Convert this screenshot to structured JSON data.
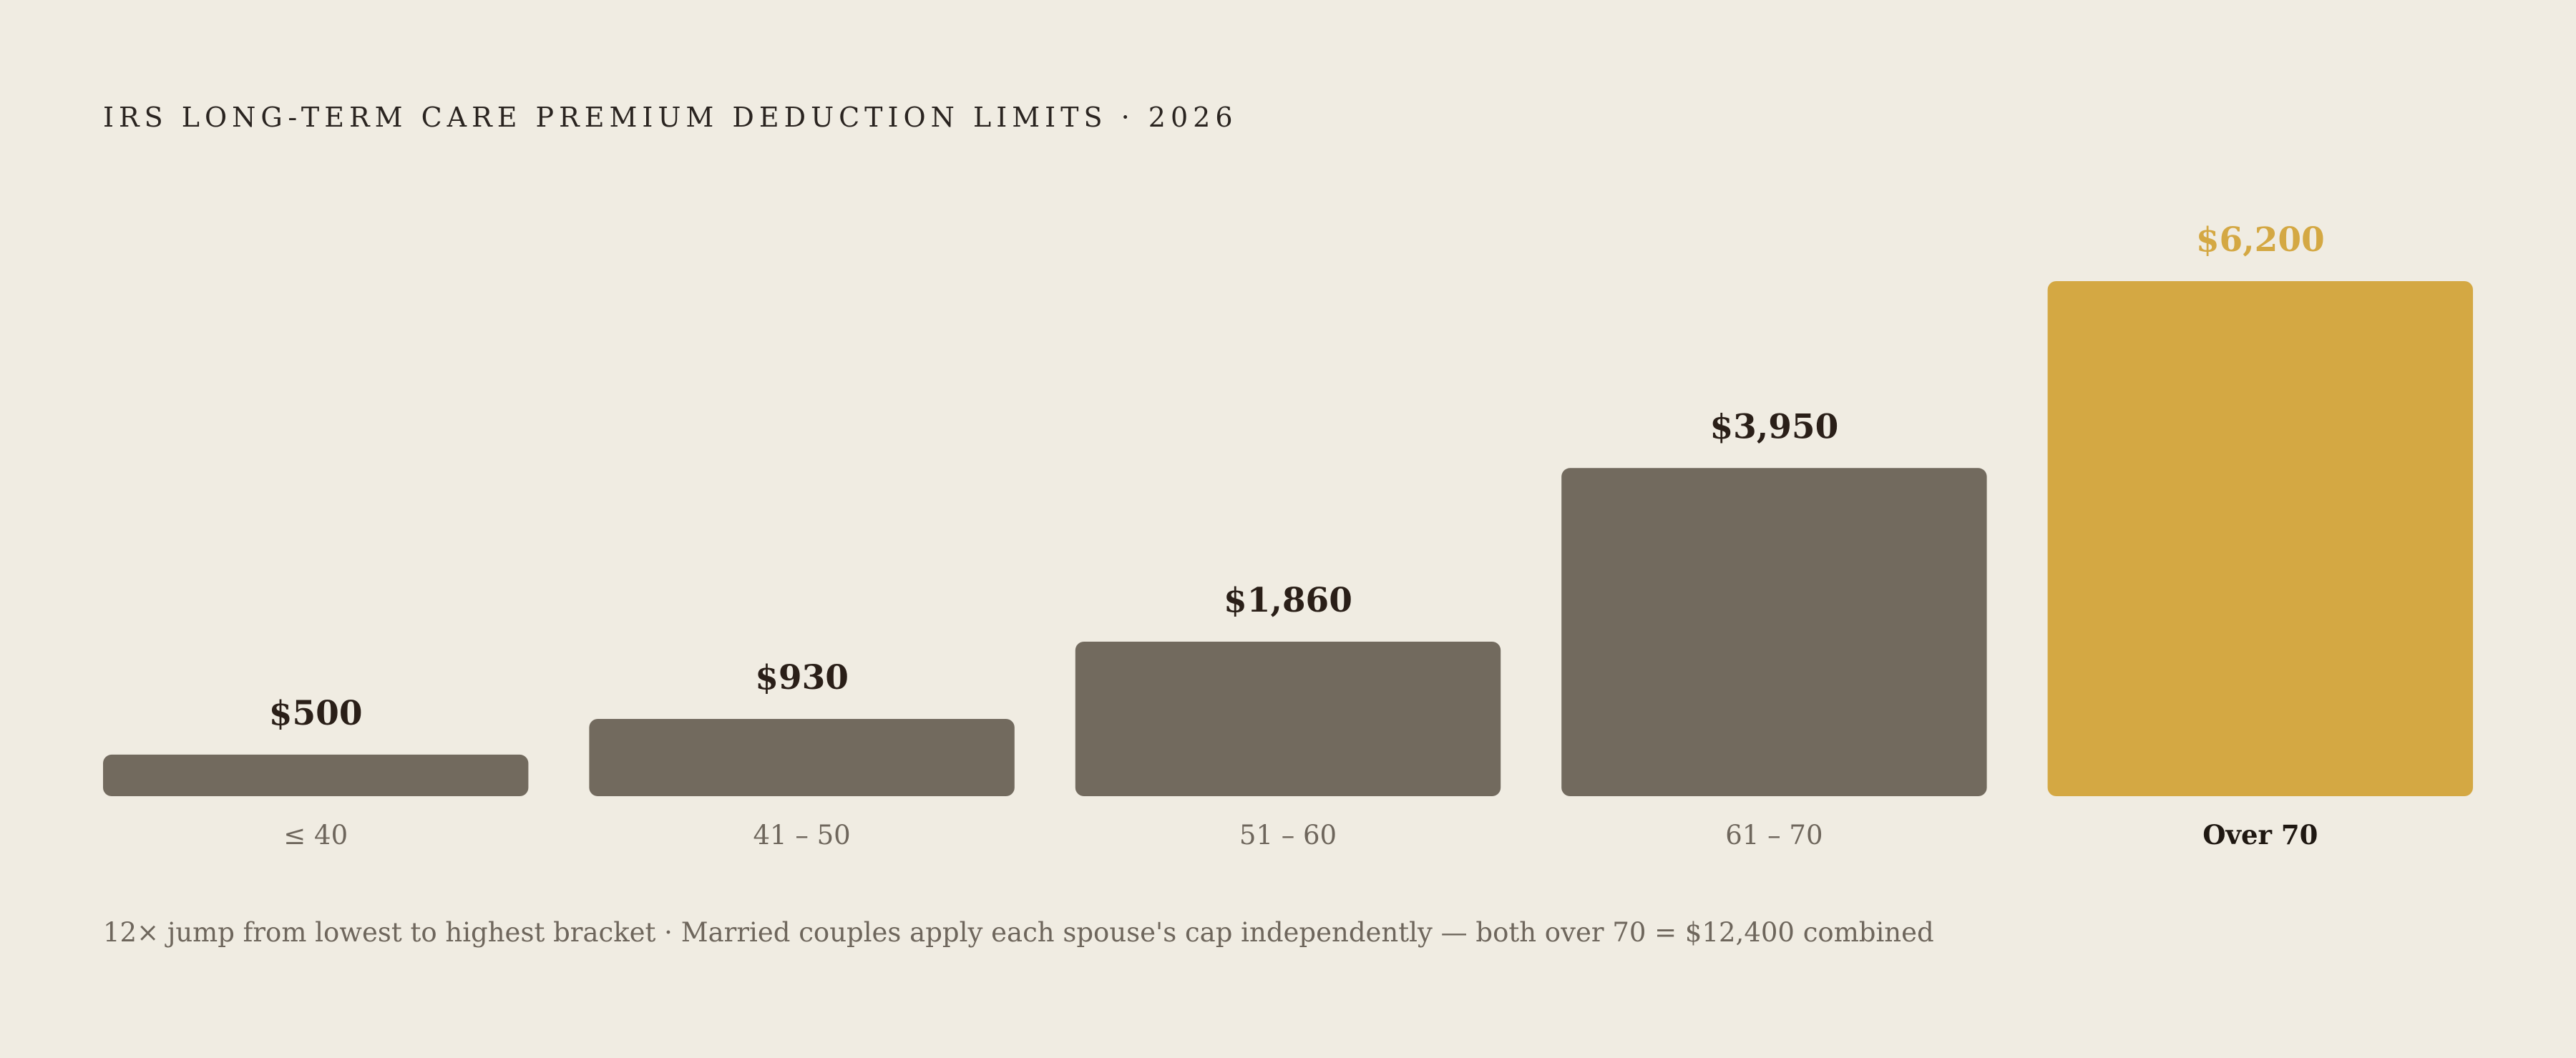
{
  "chart_data": {
    "type": "bar",
    "title": "IRS LONG-TERM CARE PREMIUM DEDUCTION LIMITS · 2026",
    "categories": [
      "≤ 40",
      "41 – 50",
      "51 – 60",
      "61 – 70",
      "Over 70"
    ],
    "values": [
      500,
      930,
      1860,
      3950,
      6200
    ],
    "value_labels": [
      "$500",
      "$930",
      "$1,860",
      "$3,950",
      "$6,200"
    ],
    "highlight_index": 4,
    "xlabel": "",
    "ylabel": "",
    "ylim": [
      0,
      6200
    ],
    "grid": false,
    "legend": "none"
  },
  "colors": {
    "background": "#f0ece2",
    "bar": "#726a5e",
    "highlight": "#d4a843",
    "title_text": "#2a2420",
    "value_text": "#2a1f18",
    "category_text": "#6e665c",
    "highlight_category_text": "#1f1812"
  },
  "footnote": "12× jump from lowest to highest bracket  ·  Married couples apply each spouse's cap independently — both over 70 = $12,400 combined"
}
